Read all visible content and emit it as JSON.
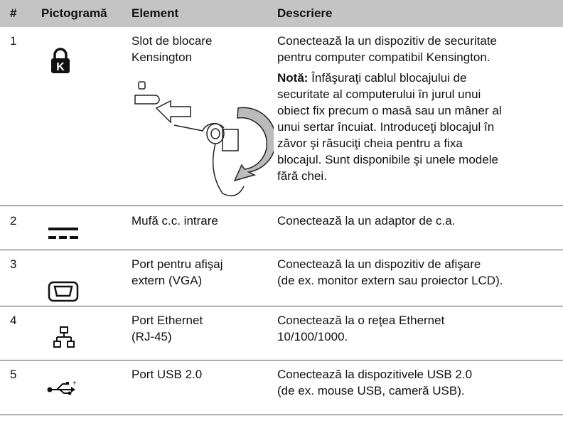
{
  "table": {
    "header": [
      "#",
      "Pictogramă",
      "Element",
      "Descriere"
    ],
    "rows": [
      {
        "number": "1",
        "element": [
          "Slot de blocare",
          "Kensington"
        ],
        "description": [
          "Conectează la un dispozitiv de securitate",
          "pentru computer compatibil Kensington."
        ],
        "note": {
          "label": "Notă:",
          "lines": [
            " Înfăşuraţi cablul blocajului de",
            "securitate al computerului în jurul unui",
            "obiect fix precum o masă sau un mâner al",
            "unui sertar încuiat. Introduceţi blocajul în",
            "zăvor şi răsuciţi cheia pentru a fixa",
            "blocajul. Sunt disponibile şi unele modele",
            "fără chei."
          ]
        }
      },
      {
        "number": "2",
        "element": [
          "Mufă c.c. intrare"
        ],
        "description": [
          "Conectează la un adaptor de c.a."
        ]
      },
      {
        "number": "3",
        "element": [
          "Port pentru afişaj",
          "extern (VGA)"
        ],
        "description": [
          "Conectează la un dispozitiv de afişare",
          "(de ex. monitor extern sau proiector LCD)."
        ]
      },
      {
        "number": "4",
        "element": [
          "Port Ethernet",
          "(RJ-45)"
        ],
        "description": [
          "Conectează la o reţea Ethernet",
          "10/100/1000."
        ]
      },
      {
        "number": "5",
        "element": [
          "Port USB 2.0"
        ],
        "description": [
          "Conectează la dispozitivele USB 2.0",
          "(de ex. mouse USB, cameră USB)."
        ]
      }
    ]
  }
}
